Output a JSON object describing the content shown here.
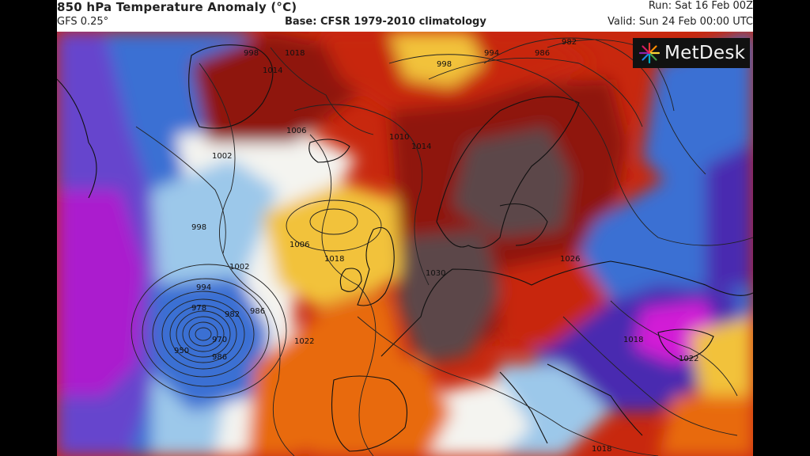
{
  "header": {
    "title": "850 hPa Temperature Anomaly (°C)",
    "model": "GFS 0.25°",
    "base": "Base: CFSR 1979-2010 climatology",
    "run": "Run: Sat 16 Feb 00Z",
    "valid": "Valid: Sun 24 Feb 00:00 UTC"
  },
  "logo": {
    "text": "MetDesk",
    "icon": "metdesk-burst-logo"
  },
  "map": {
    "field": "850 hPa temperature anomaly",
    "colors": {
      "very_warm": "#5b4648",
      "warm_dark_red": "#8f1410",
      "warm_red": "#c8280e",
      "warm_orange": "#e86a10",
      "warm_yellow": "#f2c23a",
      "neutral": "#f4f4f0",
      "cool_light_blue": "#9cc8ea",
      "cool_blue": "#3b6fd3",
      "cold_indigo": "#4a2ab0",
      "cold_purple": "#8a22c8",
      "very_cold_magenta": "#d21bd6"
    },
    "isobar_labels": [
      {
        "id": "l998a",
        "text": "998"
      },
      {
        "id": "l1018a",
        "text": "1018"
      },
      {
        "id": "l1014a",
        "text": "1014"
      },
      {
        "id": "l998b",
        "text": "998"
      },
      {
        "id": "l994a",
        "text": "994"
      },
      {
        "id": "l986a",
        "text": "986"
      },
      {
        "id": "l982a",
        "text": "982"
      },
      {
        "id": "l1006a",
        "text": "1006"
      },
      {
        "id": "l1010a",
        "text": "1010"
      },
      {
        "id": "l1014b",
        "text": "1014"
      },
      {
        "id": "l1002a",
        "text": "1002"
      },
      {
        "id": "l998c",
        "text": "998"
      },
      {
        "id": "l1006b",
        "text": "1006"
      },
      {
        "id": "l1018b",
        "text": "1018"
      },
      {
        "id": "l1002b",
        "text": "1002"
      },
      {
        "id": "l994b",
        "text": "994"
      },
      {
        "id": "l978",
        "text": "978"
      },
      {
        "id": "l970",
        "text": "970"
      },
      {
        "id": "l950",
        "text": "950"
      },
      {
        "id": "l986b",
        "text": "986"
      },
      {
        "id": "l982b",
        "text": "982"
      },
      {
        "id": "l986c",
        "text": "986"
      },
      {
        "id": "l1022a",
        "text": "1022"
      },
      {
        "id": "l1030",
        "text": "1030"
      },
      {
        "id": "l1026",
        "text": "1026"
      },
      {
        "id": "l1018c",
        "text": "1018"
      },
      {
        "id": "l1022b",
        "text": "1022"
      },
      {
        "id": "l1018d",
        "text": "1018"
      }
    ]
  }
}
